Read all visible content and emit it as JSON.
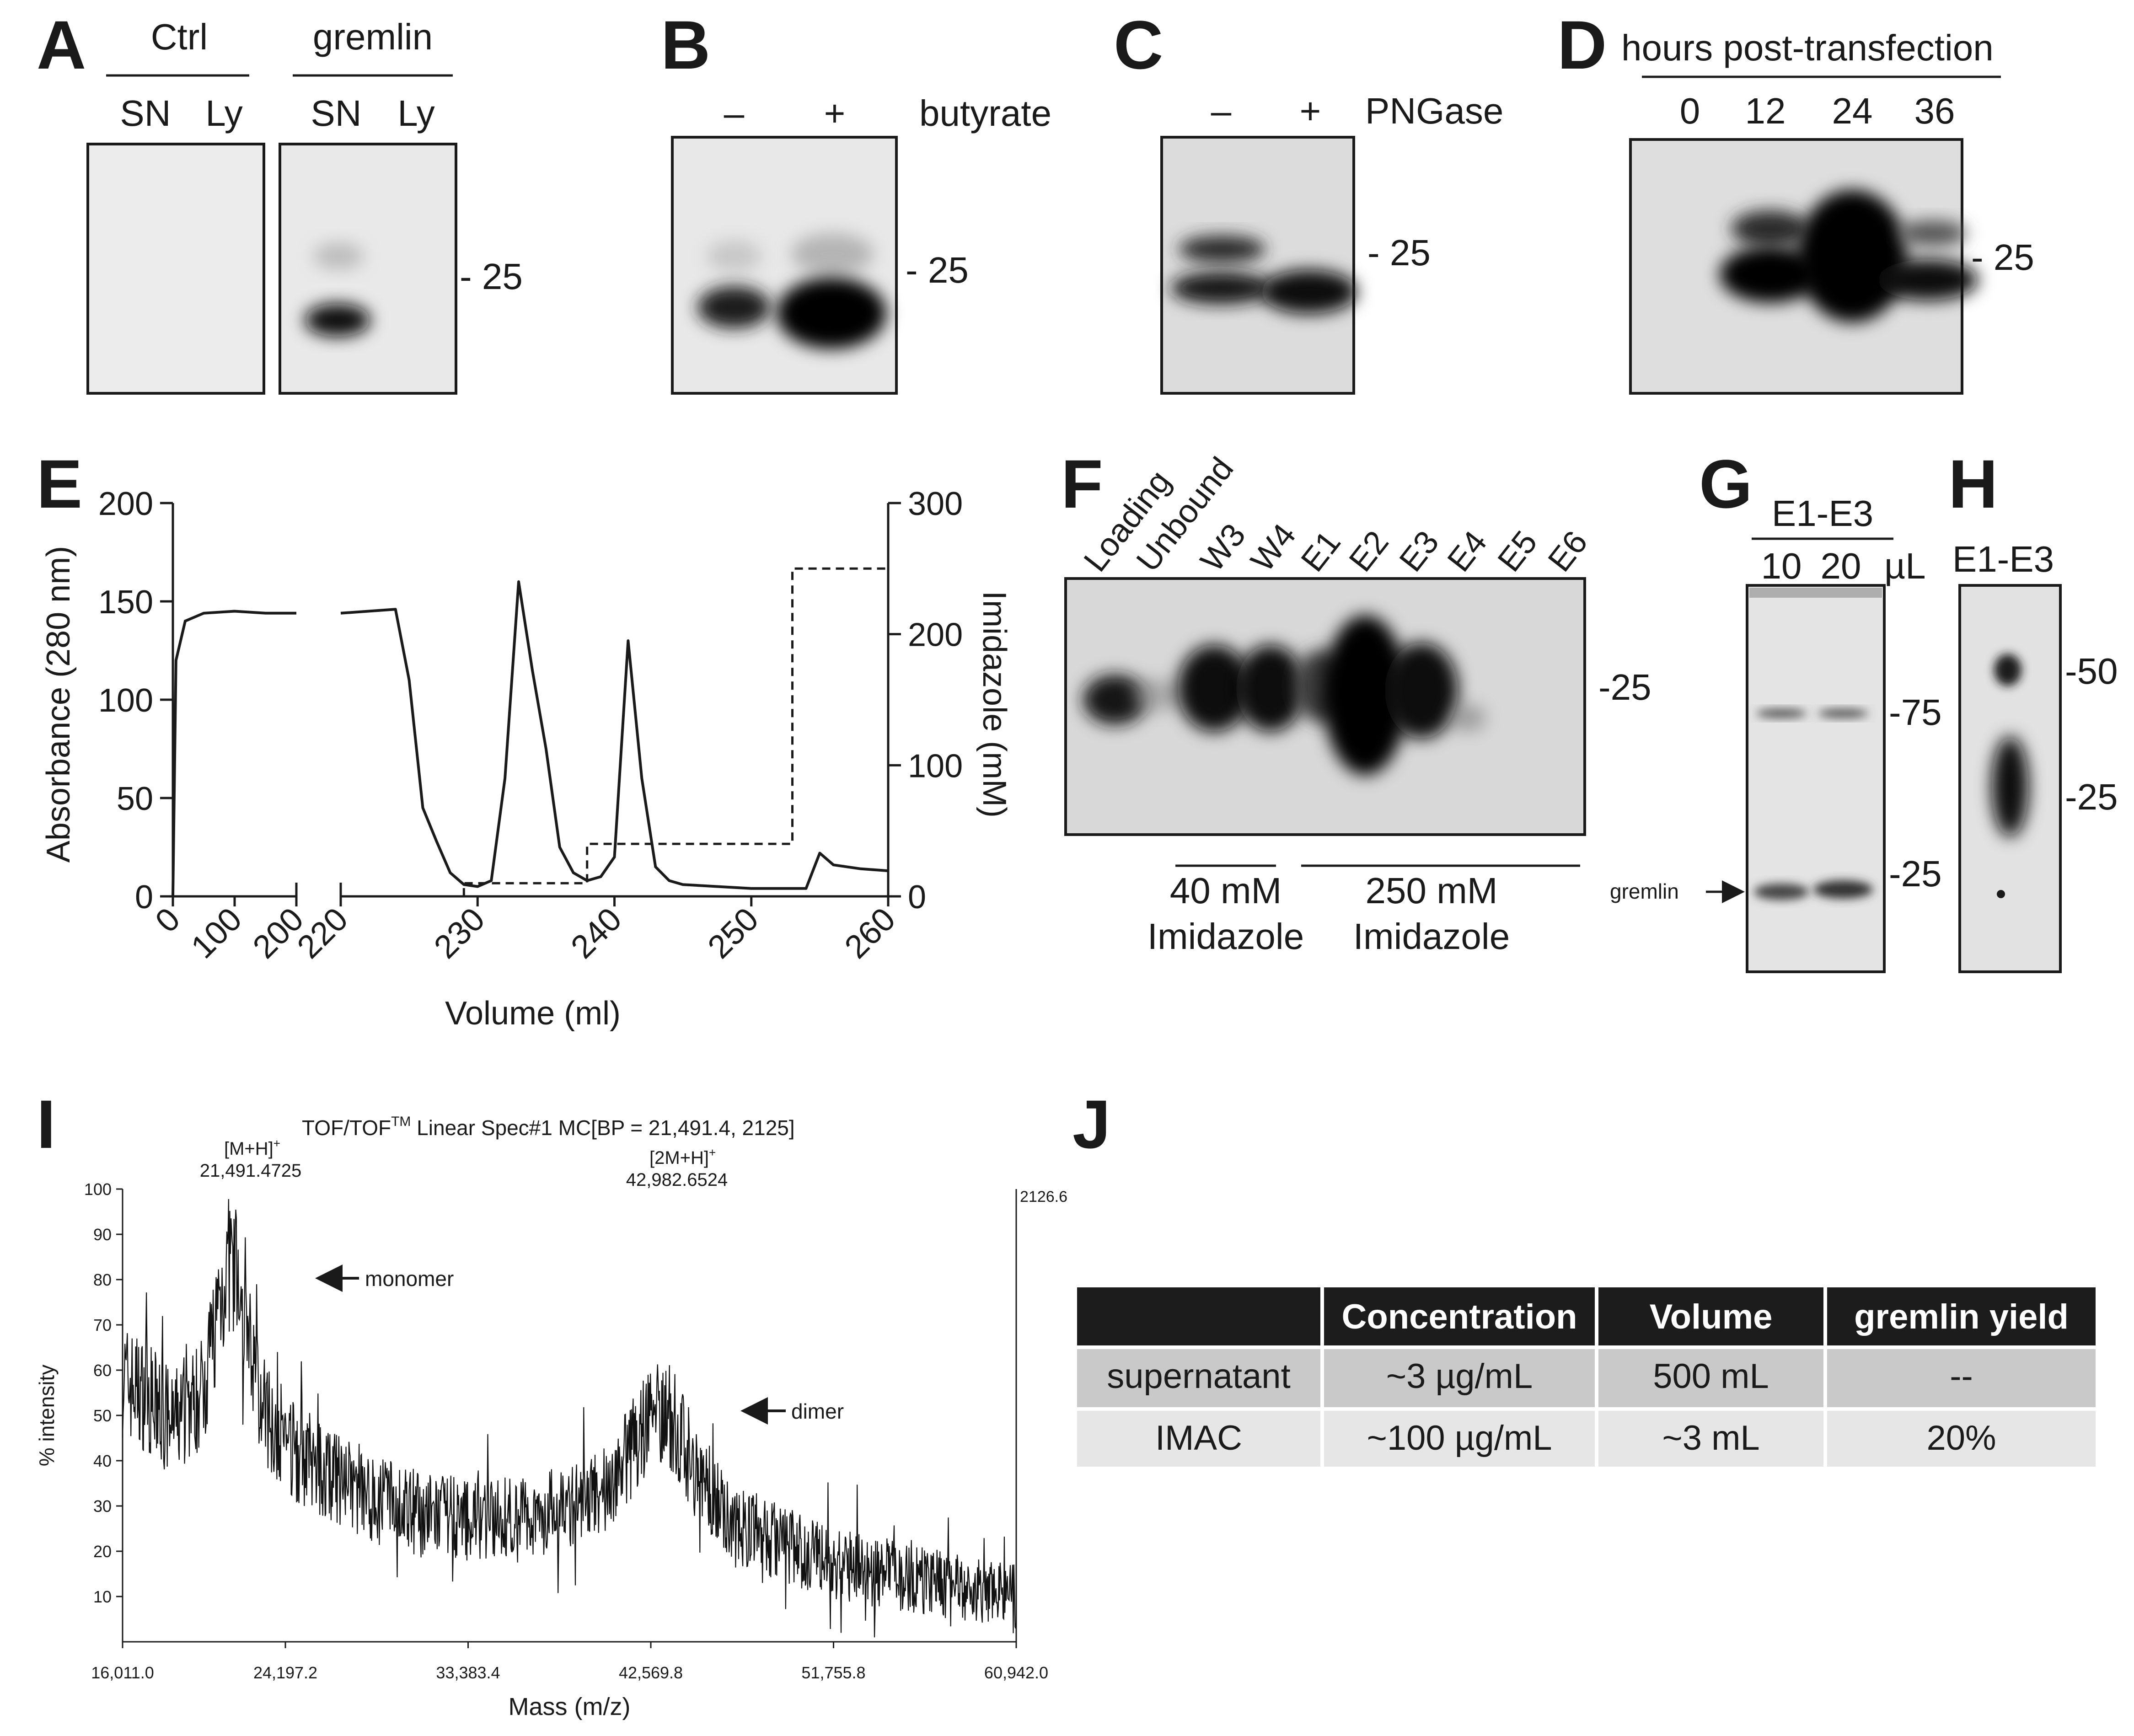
{
  "panels": {
    "A": "A",
    "B": "B",
    "C": "C",
    "D": "D",
    "E": "E",
    "F": "F",
    "G": "G",
    "H": "H",
    "I": "I",
    "J": "J"
  },
  "panelA": {
    "group1": "Ctrl",
    "group2": "gremlin",
    "lanes": [
      "SN",
      "Ly",
      "SN",
      "Ly"
    ],
    "marker": "- 25"
  },
  "panelB": {
    "lanes": [
      "–",
      "+"
    ],
    "treatment": "butyrate",
    "marker": "- 25"
  },
  "panelC": {
    "lanes": [
      "–",
      "+"
    ],
    "treatment": "PNGase",
    "marker": "- 25"
  },
  "panelD": {
    "header": "hours post-transfection",
    "lanes": [
      "0",
      "12",
      "24",
      "36"
    ],
    "marker": "- 25"
  },
  "panelE": {
    "xlabel": "Volume (ml)",
    "ylabel_left": "Absorbance (280 nm)",
    "ylabel_right": "Imidazole (mM)",
    "left_ticks": [
      "0",
      "50",
      "100",
      "150",
      "200"
    ],
    "right_ticks": [
      "0",
      "100",
      "200",
      "300"
    ],
    "x_ticks": [
      "0",
      "100",
      "200",
      "220",
      "230",
      "240",
      "250",
      "260"
    ]
  },
  "panelF": {
    "lanes": [
      "Loading",
      "Unbound",
      "W3",
      "W4",
      "E1",
      "E2",
      "E3",
      "E4",
      "E5",
      "E6"
    ],
    "marker": "-25",
    "wash_conc": "40 mM",
    "wash_label": "Imidazole",
    "elute_conc": "250 mM",
    "elute_label": "Imidazole"
  },
  "panelG": {
    "header": "E1-E3",
    "lanes": [
      "10",
      "20"
    ],
    "unit": "µL",
    "markers": [
      "-75",
      "-25"
    ],
    "arrow_label": "gremlin"
  },
  "panelH": {
    "header": "E1-E3",
    "markers": [
      "-50",
      "-25"
    ]
  },
  "panelI": {
    "title_pre": "TOF/TOF",
    "title_sup": "TM",
    "title_post": " Linear Spec#1 MC[BP = 21,491.4, 2125]",
    "peak1_label": "[M+H]",
    "peak1_sup": "+",
    "peak1_mass": "21,491.4725",
    "peak2_label": "[2M+H]",
    "peak2_sup": "+",
    "peak2_mass": "42,982.6524",
    "monomer": "monomer",
    "dimer": "dimer",
    "ylabel": "% intensity",
    "xlabel": "Mass (m/z)",
    "max_counts": "2126.6",
    "y_ticks": [
      "10",
      "20",
      "30",
      "40",
      "50",
      "60",
      "70",
      "80",
      "90",
      "100"
    ],
    "x_ticks": [
      "16,011.0",
      "24,197.2",
      "33,383.4",
      "42,569.8",
      "51,755.8",
      "60,942.0"
    ]
  },
  "panelJ": {
    "headers": [
      "",
      "Concentration",
      "Volume",
      "gremlin yield"
    ],
    "rows": [
      [
        "supernatant",
        "~3 µg/mL",
        "500 mL",
        "--"
      ],
      [
        "IMAC",
        "~100 µg/mL",
        "~3 mL",
        "20%"
      ]
    ]
  },
  "chart_data": [
    {
      "type": "line",
      "panel": "E",
      "xlabel": "Volume (ml)",
      "ylabel": "Absorbance (280 nm)",
      "ylabel_right": "Imidazole (mM)",
      "ylim": [
        0,
        200
      ],
      "ylim_right": [
        0,
        300
      ],
      "series": [
        {
          "name": "",
          "segment": "0-200",
          "x": [
            0,
            5,
            20,
            50,
            100,
            150,
            200
          ],
          "values": [
            0,
            120,
            140,
            144,
            145,
            144,
            144
          ]
        },
        {
          "name": "",
          "segment": "220-260",
          "x": [
            220,
            224,
            225,
            226,
            227,
            228,
            229,
            230,
            231,
            232,
            233,
            234,
            235,
            236,
            237,
            238,
            239,
            240,
            241,
            242,
            243,
            244,
            245,
            250,
            254,
            255,
            256,
            258,
            260
          ],
          "values": [
            144,
            146,
            110,
            45,
            28,
            12,
            6,
            5,
            8,
            60,
            160,
            115,
            75,
            25,
            12,
            8,
            10,
            20,
            130,
            60,
            15,
            8,
            6,
            4,
            4,
            22,
            16,
            14,
            13
          ]
        },
        {
          "name": "",
          "axis": "right",
          "style": "dashed",
          "x": [
            229,
            229,
            238,
            238,
            253,
            253,
            260
          ],
          "values": [
            0,
            10,
            10,
            40,
            40,
            250,
            250
          ]
        }
      ]
    },
    {
      "type": "line",
      "panel": "I",
      "xlabel": "Mass (m/z)",
      "ylabel": "% intensity",
      "xlim": [
        16011.0,
        60942.0
      ],
      "ylim": [
        0,
        100
      ],
      "series": [
        {
          "name": "",
          "x": [
            16011,
            17000,
            18500,
            20000,
            21000,
            21491,
            22200,
            23000,
            25000,
            28000,
            31000,
            34000,
            37000,
            40000,
            41500,
            42500,
            42983,
            43800,
            45000,
            47000,
            50000,
            53000,
            56000,
            59000,
            60942
          ],
          "values": [
            58,
            55,
            48,
            55,
            78,
            85,
            70,
            52,
            40,
            33,
            28,
            27,
            28,
            32,
            42,
            50,
            52,
            48,
            36,
            26,
            20,
            16,
            14,
            11,
            10
          ]
        }
      ]
    }
  ]
}
